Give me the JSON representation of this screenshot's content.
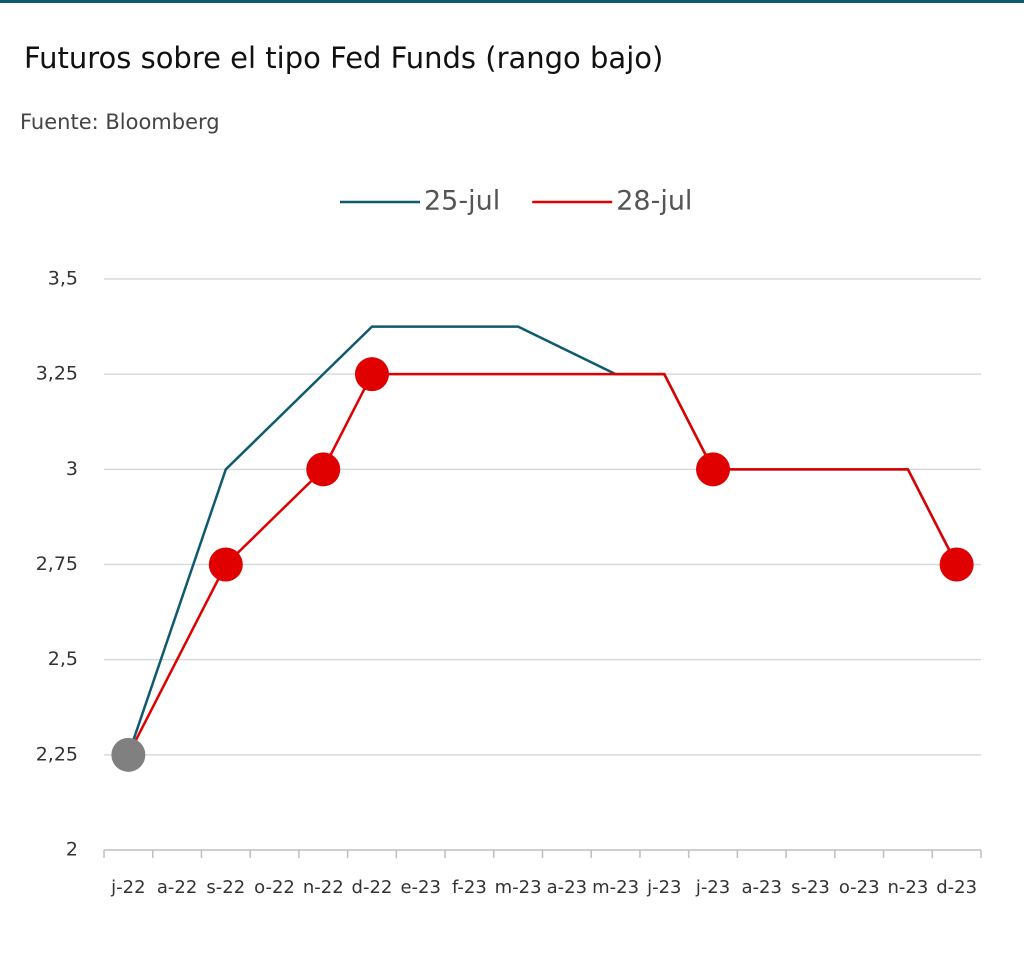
{
  "chart_data": {
    "type": "line",
    "title": "Futuros sobre el tipo Fed Funds (rango bajo)",
    "subtitle": "Fuente: Bloomberg",
    "categories": [
      "j-22",
      "a-22",
      "s-22",
      "o-22",
      "n-22",
      "d-22",
      "e-23",
      "f-23",
      "m-23",
      "a-23",
      "m-23",
      "j-23",
      "j-23",
      "a-23",
      "s-23",
      "o-23",
      "n-23",
      "d-23"
    ],
    "series": [
      {
        "name": "25-jul",
        "color": "#0f5a6e",
        "values": [
          2.25,
          2.625,
          3.0,
          3.125,
          3.25,
          3.375,
          3.375,
          3.375,
          3.375,
          3.3125,
          3.25,
          3.25,
          3.0,
          3.0,
          3.0,
          3.0,
          3.0,
          2.75
        ]
      },
      {
        "name": "28-jul",
        "color": "#e00000",
        "values": [
          2.25,
          2.5,
          2.75,
          2.875,
          3.0,
          3.25,
          3.25,
          3.25,
          3.25,
          3.25,
          3.25,
          3.25,
          3.0,
          3.0,
          3.0,
          3.0,
          3.0,
          2.75
        ],
        "marker_colors": [
          "#808080",
          null,
          "#e00000",
          null,
          "#e00000",
          "#e00000",
          null,
          null,
          null,
          null,
          null,
          null,
          "#e00000",
          null,
          null,
          null,
          null,
          "#e00000"
        ]
      }
    ],
    "ylim": [
      2,
      3.5
    ],
    "yticks": [
      2,
      {
        "value": 2.25,
        "label": "2,25"
      },
      {
        "value": 2.5,
        "label": "2,5"
      },
      {
        "value": 2.75,
        "label": "2,75"
      },
      3,
      {
        "value": 3.25,
        "label": "3,25"
      },
      {
        "value": 3.5,
        "label": "3,5"
      }
    ],
    "grid": true,
    "legend": "top"
  }
}
